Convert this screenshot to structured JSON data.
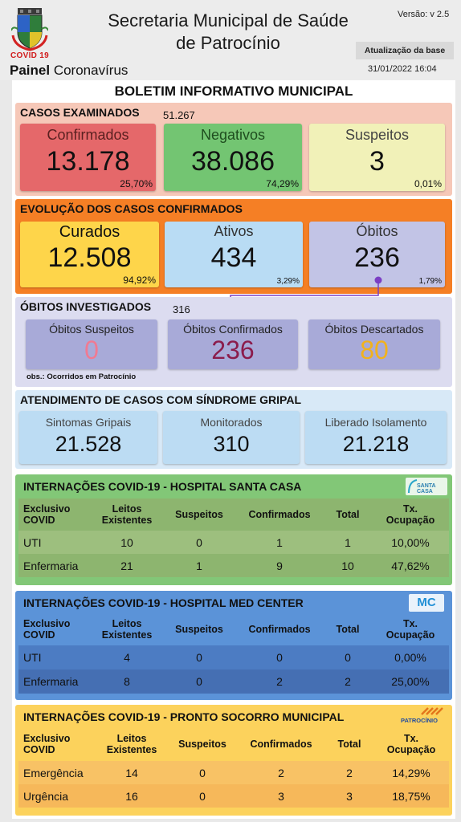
{
  "header": {
    "covid_label": "COVID 19",
    "painel_bold": "Painel",
    "painel_rest": " Coronavírus",
    "title_line1": "Secretaria Municipal de Saúde",
    "title_line2": "de Patrocínio",
    "version": "Versão: v 2.5",
    "update_label": "Atualização da base",
    "update_date": "31/01/2022 16:04"
  },
  "bulletin_title": "BOLETIM INFORMATIVO MUNICIPAL",
  "casos_examinados": {
    "title": "CASOS EXAMINADOS",
    "total": "51.267",
    "confirmados": {
      "label": "Confirmados",
      "value": "13.178",
      "pct": "25,70%"
    },
    "negativos": {
      "label": "Negativos",
      "value": "38.086",
      "pct": "74,29%"
    },
    "suspeitos": {
      "label": "Suspeitos",
      "value": "3",
      "pct": "0,01%"
    }
  },
  "evolucao": {
    "title": "EVOLUÇÃO DOS CASOS CONFIRMADOS",
    "curados": {
      "label": "Curados",
      "value": "12.508",
      "pct": "94,92%"
    },
    "ativos": {
      "label": "Ativos",
      "value": "434",
      "pct": "3,29%"
    },
    "obitos": {
      "label": "Óbitos",
      "value": "236",
      "pct": "1,79%"
    }
  },
  "obitos_investigados": {
    "title": "ÓBITOS INVESTIGADOS",
    "total": "316",
    "suspeitos": {
      "label": "Óbitos Suspeitos",
      "value": "0"
    },
    "confirmados": {
      "label": "Óbitos Confirmados",
      "value": "236"
    },
    "descartados": {
      "label": "Óbitos Descartados",
      "value": "80"
    },
    "obs": "obs.: Ocorridos em Patrocínio"
  },
  "sindrome_gripal": {
    "title": "ATENDIMENTO DE CASOS COM SÍNDROME GRIPAL",
    "sintomas": {
      "label": "Sintomas Gripais",
      "value": "21.528"
    },
    "monitorados": {
      "label": "Monitorados",
      "value": "310"
    },
    "liberado": {
      "label": "Liberado Isolamento",
      "value": "21.218"
    }
  },
  "table_headers": {
    "col1a": "Exclusivo",
    "col1b": "COVID",
    "col2a": "Leitos",
    "col2b": "Existentes",
    "col3": "Suspeitos",
    "col4": "Confirmados",
    "col5": "Total",
    "col6a": "Tx.",
    "col6b": "Ocupação"
  },
  "santa_casa": {
    "title": "INTERNAÇÕES COVID-19 - HOSPITAL SANTA CASA",
    "logo_text": "SANTA CASA",
    "rows": [
      {
        "name": "UTI",
        "leitos": "10",
        "suspeitos": "0",
        "confirmados": "1",
        "total": "1",
        "tx": "10,00%"
      },
      {
        "name": "Enfermaria",
        "leitos": "21",
        "suspeitos": "1",
        "confirmados": "9",
        "total": "10",
        "tx": "47,62%"
      }
    ]
  },
  "med_center": {
    "title": "INTERNAÇÕES COVID-19 - HOSPITAL MED CENTER",
    "logo_text": "MC",
    "rows": [
      {
        "name": "UTI",
        "leitos": "4",
        "suspeitos": "0",
        "confirmados": "0",
        "total": "0",
        "tx": "0,00%"
      },
      {
        "name": "Enfermaria",
        "leitos": "8",
        "suspeitos": "0",
        "confirmados": "2",
        "total": "2",
        "tx": "25,00%"
      }
    ]
  },
  "pronto_socorro": {
    "title": "INTERNAÇÕES COVID-19 - PRONTO SOCORRO MUNICIPAL",
    "logo_text": "PATROCÍNIO",
    "rows": [
      {
        "name": "Emergência",
        "leitos": "14",
        "suspeitos": "0",
        "confirmados": "2",
        "total": "2",
        "tx": "14,29%"
      },
      {
        "name": "Urgência",
        "leitos": "16",
        "suspeitos": "0",
        "confirmados": "3",
        "total": "3",
        "tx": "18,75%"
      }
    ]
  },
  "colors": {
    "casos_bg": "#f6c8b8",
    "confirmados_card": "#e5686a",
    "negativos_card": "#73c572",
    "suspeitos_card": "#f1f1b8",
    "evolucao_bg": "#f57f25",
    "curados_card": "#fed54a",
    "ativos_card": "#b9dcf4",
    "obitos_card": "#c2c4e6",
    "investigados_bg": "#dcdcf0",
    "inv_card": "#a8aad8",
    "gripal_bg": "#d8e9f7",
    "gripal_card": "#bcdcf3",
    "santa_head": "#82c777",
    "santa_body": "#8db56f",
    "med_head": "#5b93d8",
    "med_body": "#456fb3",
    "ps_head": "#fcd25c",
    "ps_body": "#f8c265"
  }
}
